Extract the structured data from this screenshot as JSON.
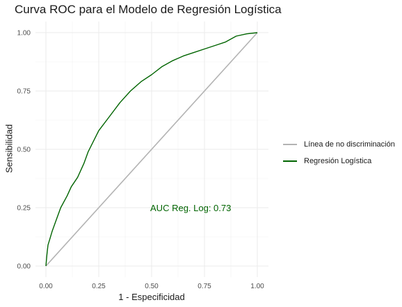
{
  "chart_data": {
    "type": "line",
    "title": "Curva ROC para el Modelo de Regresión Logística",
    "xlabel": "1 - Especificidad",
    "ylabel": "Sensibilidad",
    "xlim": [
      0,
      1
    ],
    "ylim": [
      0,
      1
    ],
    "x_ticks": [
      "0.00",
      "0.25",
      "0.50",
      "0.75",
      "1.00"
    ],
    "y_ticks": [
      "0.00",
      "0.25",
      "0.50",
      "0.75",
      "1.00"
    ],
    "grid": true,
    "legend_position": "right",
    "series": [
      {
        "name": "Línea de no discriminación",
        "color": "#b3b3b3",
        "x": [
          0,
          1
        ],
        "y": [
          0,
          1
        ]
      },
      {
        "name": "Regresión Logística",
        "color": "#006400",
        "x": [
          0,
          0.005,
          0.01,
          0.02,
          0.03,
          0.05,
          0.07,
          0.1,
          0.12,
          0.15,
          0.18,
          0.2,
          0.25,
          0.3,
          0.35,
          0.4,
          0.45,
          0.5,
          0.55,
          0.6,
          0.65,
          0.7,
          0.75,
          0.8,
          0.85,
          0.9,
          0.95,
          1.0
        ],
        "y": [
          0,
          0.05,
          0.09,
          0.12,
          0.15,
          0.2,
          0.25,
          0.3,
          0.34,
          0.38,
          0.44,
          0.49,
          0.58,
          0.64,
          0.7,
          0.75,
          0.79,
          0.82,
          0.855,
          0.88,
          0.9,
          0.915,
          0.93,
          0.945,
          0.96,
          0.985,
          0.995,
          1.0
        ]
      }
    ],
    "annotations": [
      {
        "text": "AUC Reg. Log: 0.73",
        "x": 0.8,
        "y": 0.25,
        "color": "#006400"
      }
    ]
  }
}
